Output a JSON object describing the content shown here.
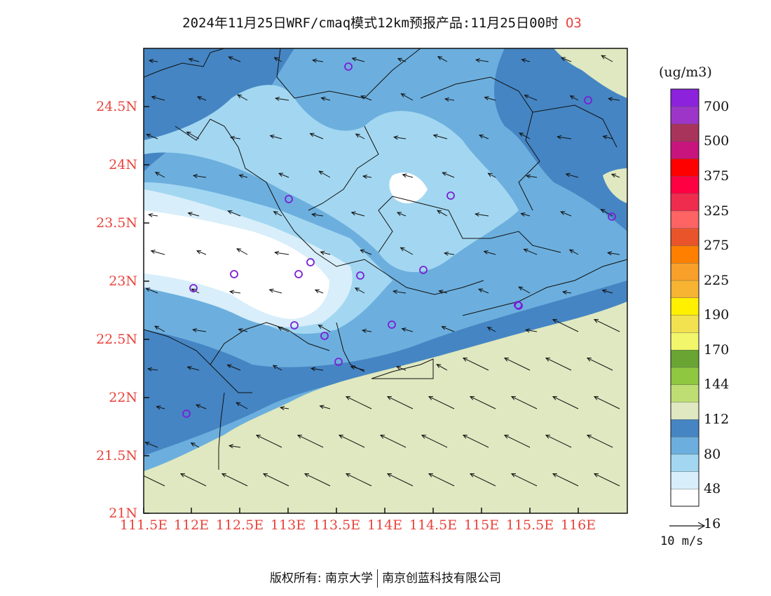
{
  "title": {
    "text": "2024年11月25日WRF/cmaq模式12km预报产品:11月25日00时",
    "species": "O3"
  },
  "map": {
    "lat_labels": [
      "24.5N",
      "24N",
      "23.5N",
      "23N",
      "22.5N",
      "22N",
      "21.5N",
      "21N"
    ],
    "lon_labels": [
      "111.5E",
      "112E",
      "112.5E",
      "113E",
      "113.5E",
      "114E",
      "114.5E",
      "115E",
      "115.5E",
      "116E"
    ],
    "land_color": "#dfe8c0",
    "stations": [
      "1",
      "2",
      "3",
      "4",
      "5",
      "6",
      "7",
      "8",
      "9",
      "10",
      "11",
      "12",
      "13",
      "14",
      "15",
      "16",
      "17",
      "18"
    ]
  },
  "colorbar": {
    "unit": "(ug/m3)",
    "labels": [
      "700",
      "500",
      "375",
      "325",
      "275",
      "225",
      "190",
      "170",
      "144",
      "112",
      "80",
      "48",
      "16"
    ],
    "colors": [
      "#ffffff",
      "#d8eefa",
      "#a3d7f1",
      "#6cafde",
      "#4585c3",
      "#dfe8c0",
      "#bede74",
      "#8fc840",
      "#6aa533",
      "#f2f66a",
      "#f3e24f",
      "#fff000",
      "#f7b432",
      "#f8a029",
      "#ff8000",
      "#e9542b",
      "#ff6464",
      "#ef2c4e",
      "#ff0043",
      "#ff0000",
      "#c8147d",
      "#a8345c",
      "#9d36c8",
      "#8c22dc"
    ]
  },
  "wind_reference": {
    "label": "10 m/s"
  },
  "copyright": {
    "left": "版权所有: 南京大学",
    "right": "南京创蓝科技有限公司"
  }
}
